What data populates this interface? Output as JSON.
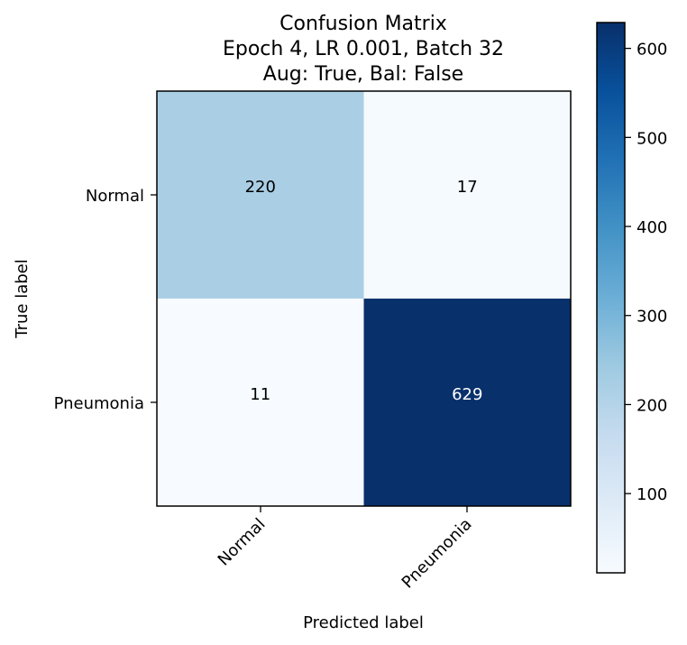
{
  "chart_data": {
    "type": "heatmap",
    "title_lines": [
      "Confusion Matrix",
      "Epoch 4, LR 0.001, Batch 32",
      "Aug: True, Bal: False"
    ],
    "xlabel": "Predicted label",
    "ylabel": "True label",
    "x_categories": [
      "Normal",
      "Pneumonia"
    ],
    "y_categories": [
      "Normal",
      "Pneumonia"
    ],
    "matrix": [
      [
        220,
        17
      ],
      [
        11,
        629
      ]
    ],
    "colormap": "Blues",
    "color_range": [
      11,
      629
    ],
    "colorbar_ticks": [
      100,
      200,
      300,
      400,
      500,
      600
    ],
    "colorbar_tick_labels": [
      "100",
      "200",
      "300",
      "400",
      "500",
      "600"
    ]
  },
  "colors": {
    "text_dark": "#000000",
    "text_light": "#ffffff",
    "frame": "#000000"
  }
}
